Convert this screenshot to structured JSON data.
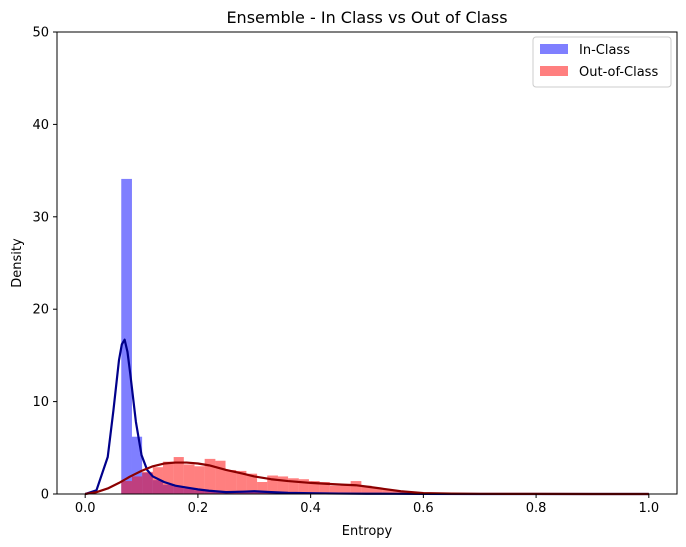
{
  "chart_data": {
    "type": "histogram",
    "title": "Ensemble - In Class vs Out of Class",
    "xlabel": "Entropy",
    "ylabel": "Density",
    "xlim": [
      -0.05,
      1.05
    ],
    "ylim": [
      0,
      50
    ],
    "xticks": [
      "0.0",
      "0.2",
      "0.4",
      "0.6",
      "0.8",
      "1.0"
    ],
    "yticks": [
      "0",
      "10",
      "20",
      "30",
      "40",
      "50"
    ],
    "grid": false,
    "legend_position": "top-right",
    "series": [
      {
        "name": "In-Class",
        "kind": "hist",
        "color": "#0000ff",
        "opacity": 0.5,
        "bins": [
          {
            "x0": 0.064,
            "x1": 0.083,
            "y": 34.1
          },
          {
            "x0": 0.083,
            "x1": 0.101,
            "y": 6.2
          },
          {
            "x0": 0.101,
            "x1": 0.12,
            "y": 2.3
          },
          {
            "x0": 0.12,
            "x1": 0.138,
            "y": 1.5
          },
          {
            "x0": 0.138,
            "x1": 0.157,
            "y": 1.0
          },
          {
            "x0": 0.157,
            "x1": 0.175,
            "y": 0.8
          },
          {
            "x0": 0.175,
            "x1": 0.194,
            "y": 0.6
          },
          {
            "x0": 0.194,
            "x1": 0.212,
            "y": 0.4
          },
          {
            "x0": 0.212,
            "x1": 0.231,
            "y": 0.3
          },
          {
            "x0": 0.231,
            "x1": 0.268,
            "y": 0.2
          },
          {
            "x0": 0.268,
            "x1": 0.305,
            "y": 0.35
          },
          {
            "x0": 0.305,
            "x1": 0.36,
            "y": 0.2
          },
          {
            "x0": 0.36,
            "x1": 0.52,
            "y": 0.1
          }
        ]
      },
      {
        "name": "Out-of-Class",
        "kind": "hist",
        "color": "#ff0000",
        "opacity": 0.5,
        "bins": [
          {
            "x0": 0.064,
            "x1": 0.083,
            "y": 1.4
          },
          {
            "x0": 0.083,
            "x1": 0.101,
            "y": 1.9
          },
          {
            "x0": 0.101,
            "x1": 0.12,
            "y": 2.4
          },
          {
            "x0": 0.12,
            "x1": 0.138,
            "y": 2.9
          },
          {
            "x0": 0.138,
            "x1": 0.157,
            "y": 3.5
          },
          {
            "x0": 0.157,
            "x1": 0.175,
            "y": 4.0
          },
          {
            "x0": 0.175,
            "x1": 0.194,
            "y": 3.2
          },
          {
            "x0": 0.194,
            "x1": 0.212,
            "y": 3.0
          },
          {
            "x0": 0.212,
            "x1": 0.231,
            "y": 3.8
          },
          {
            "x0": 0.231,
            "x1": 0.249,
            "y": 3.6
          },
          {
            "x0": 0.249,
            "x1": 0.268,
            "y": 2.6
          },
          {
            "x0": 0.268,
            "x1": 0.286,
            "y": 2.5
          },
          {
            "x0": 0.286,
            "x1": 0.305,
            "y": 2.2
          },
          {
            "x0": 0.305,
            "x1": 0.323,
            "y": 1.3
          },
          {
            "x0": 0.323,
            "x1": 0.342,
            "y": 2.0
          },
          {
            "x0": 0.342,
            "x1": 0.36,
            "y": 1.9
          },
          {
            "x0": 0.36,
            "x1": 0.379,
            "y": 1.7
          },
          {
            "x0": 0.379,
            "x1": 0.397,
            "y": 1.6
          },
          {
            "x0": 0.397,
            "x1": 0.416,
            "y": 1.4
          },
          {
            "x0": 0.416,
            "x1": 0.434,
            "y": 1.3
          },
          {
            "x0": 0.434,
            "x1": 0.453,
            "y": 0.9
          },
          {
            "x0": 0.453,
            "x1": 0.471,
            "y": 1.1
          },
          {
            "x0": 0.471,
            "x1": 0.49,
            "y": 1.4
          },
          {
            "x0": 0.49,
            "x1": 0.508,
            "y": 0.9
          },
          {
            "x0": 0.508,
            "x1": 0.527,
            "y": 0.7
          },
          {
            "x0": 0.527,
            "x1": 0.545,
            "y": 0.5
          },
          {
            "x0": 0.545,
            "x1": 0.564,
            "y": 0.35
          },
          {
            "x0": 0.564,
            "x1": 0.582,
            "y": 0.25
          },
          {
            "x0": 0.582,
            "x1": 0.601,
            "y": 0.12
          }
        ]
      },
      {
        "name": "In-Class KDE",
        "kind": "line",
        "color": "#00008b",
        "x": [
          0.0,
          0.02,
          0.04,
          0.05,
          0.06,
          0.065,
          0.07,
          0.075,
          0.08,
          0.09,
          0.1,
          0.11,
          0.12,
          0.14,
          0.16,
          0.18,
          0.2,
          0.22,
          0.25,
          0.28,
          0.3,
          0.33,
          0.36,
          0.4,
          0.45,
          0.5,
          0.55,
          0.6,
          0.7,
          0.8,
          0.9,
          1.0
        ],
        "y": [
          0.0,
          0.4,
          4.0,
          9.0,
          14.5,
          16.2,
          16.7,
          15.4,
          13.0,
          7.8,
          4.2,
          2.6,
          1.9,
          1.3,
          0.9,
          0.7,
          0.5,
          0.35,
          0.2,
          0.25,
          0.3,
          0.2,
          0.12,
          0.08,
          0.05,
          0.03,
          0.02,
          0.01,
          0.0,
          0.0,
          0.0,
          0.0
        ]
      },
      {
        "name": "Out-of-Class KDE",
        "kind": "line",
        "color": "#8b0000",
        "x": [
          0.0,
          0.02,
          0.04,
          0.06,
          0.08,
          0.1,
          0.12,
          0.14,
          0.16,
          0.18,
          0.2,
          0.22,
          0.25,
          0.28,
          0.3,
          0.33,
          0.36,
          0.4,
          0.43,
          0.46,
          0.48,
          0.5,
          0.53,
          0.56,
          0.6,
          0.65,
          0.7,
          0.8,
          0.9,
          1.0
        ],
        "y": [
          0.0,
          0.2,
          0.6,
          1.2,
          1.9,
          2.5,
          3.0,
          3.3,
          3.4,
          3.4,
          3.3,
          3.1,
          2.6,
          2.2,
          1.9,
          1.6,
          1.4,
          1.2,
          1.1,
          1.0,
          0.95,
          0.8,
          0.55,
          0.3,
          0.1,
          0.04,
          0.02,
          0.01,
          0.0,
          0.0
        ]
      }
    ]
  }
}
